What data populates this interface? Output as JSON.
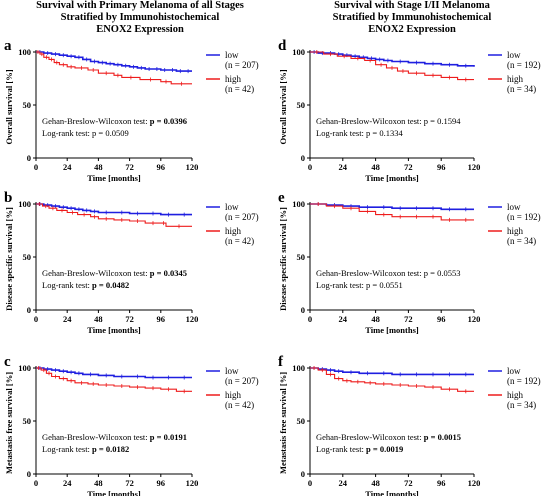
{
  "column_titles": [
    [
      "Survival with Primary Melanoma of all Stages",
      "Stratified by Immunohistochemical",
      "ENOX2 Expression"
    ],
    [
      "Survival with Stage I/II Melanoma",
      "Stratified by Immunohistochemical",
      "ENOX2 Expression"
    ]
  ],
  "colors": {
    "low": "#1f1fe0",
    "high": "#ee1c1c",
    "axis": "#000000"
  },
  "chart_data": [
    {
      "panel": "a",
      "type": "line",
      "ylabel": "Overall survival [%]",
      "xlabel": "Time [months]",
      "xlim": [
        0,
        120
      ],
      "ylim": [
        0,
        100
      ],
      "xticks": [
        0,
        24,
        48,
        72,
        96,
        120
      ],
      "yticks": [
        0,
        50,
        100
      ],
      "series": [
        {
          "name": "low",
          "n_label": "(n = 207)",
          "x": [
            0,
            6,
            12,
            18,
            24,
            30,
            36,
            42,
            48,
            54,
            60,
            66,
            72,
            78,
            84,
            90,
            96,
            102,
            108,
            114,
            120
          ],
          "y": [
            100,
            99,
            98,
            97,
            96,
            95,
            93,
            91,
            90,
            89,
            88,
            87,
            86,
            85,
            84,
            84,
            83,
            83,
            82,
            82,
            82
          ]
        },
        {
          "name": "high",
          "n_label": "(n = 42)",
          "x": [
            0,
            3,
            6,
            10,
            14,
            18,
            24,
            30,
            40,
            48,
            60,
            66,
            80,
            96,
            104,
            120
          ],
          "y": [
            100,
            98,
            95,
            93,
            90,
            88,
            86,
            85,
            83,
            80,
            78,
            76,
            74,
            72,
            70,
            70
          ]
        }
      ],
      "stats": [
        {
          "label": "Gehan-Breslow-Wilcoxon test: ",
          "value": "p = 0.0396",
          "bold": true
        },
        {
          "label": "Log-rank test: ",
          "value": "p = 0.0509",
          "bold": false
        }
      ]
    },
    {
      "panel": "b",
      "type": "line",
      "ylabel": "Disease specific survival [%]",
      "xlabel": "Time [months]",
      "xlim": [
        0,
        120
      ],
      "ylim": [
        0,
        100
      ],
      "xticks": [
        0,
        24,
        48,
        72,
        96,
        120
      ],
      "yticks": [
        0,
        50,
        100
      ],
      "series": [
        {
          "name": "low",
          "n_label": "(n = 207)",
          "x": [
            0,
            6,
            12,
            18,
            24,
            30,
            36,
            42,
            48,
            60,
            72,
            84,
            96,
            108,
            120
          ],
          "y": [
            100,
            99,
            98,
            97,
            96,
            95,
            94,
            93,
            92,
            92,
            91,
            91,
            90,
            90,
            90
          ]
        },
        {
          "name": "high",
          "n_label": "(n = 42)",
          "x": [
            0,
            5,
            10,
            16,
            24,
            32,
            42,
            48,
            60,
            72,
            84,
            96,
            100,
            120
          ],
          "y": [
            100,
            98,
            96,
            94,
            92,
            90,
            88,
            86,
            85,
            84,
            82,
            82,
            79,
            79
          ]
        }
      ],
      "stats": [
        {
          "label": "Gehan-Breslow-Wilcoxon test: ",
          "value": "p = 0.0345",
          "bold": true
        },
        {
          "label": "Log-rank test: ",
          "value": "p = 0.0482",
          "bold": true
        }
      ]
    },
    {
      "panel": "c",
      "type": "line",
      "ylabel": "Metastasis free survival [%]",
      "xlabel": "Time [months]",
      "xlim": [
        0,
        120
      ],
      "ylim": [
        0,
        100
      ],
      "xticks": [
        0,
        24,
        48,
        72,
        96,
        120
      ],
      "yticks": [
        0,
        50,
        100
      ],
      "series": [
        {
          "name": "low",
          "n_label": "(n = 207)",
          "x": [
            0,
            6,
            12,
            18,
            24,
            30,
            36,
            48,
            60,
            72,
            84,
            96,
            108,
            120
          ],
          "y": [
            100,
            99,
            98,
            97,
            96,
            95,
            94,
            93,
            92,
            92,
            91,
            91,
            91,
            91
          ]
        },
        {
          "name": "high",
          "n_label": "(n = 42)",
          "x": [
            0,
            4,
            8,
            12,
            18,
            24,
            30,
            40,
            48,
            60,
            72,
            84,
            96,
            108,
            120
          ],
          "y": [
            100,
            98,
            95,
            92,
            90,
            88,
            86,
            85,
            84,
            83,
            82,
            81,
            80,
            78,
            78
          ]
        }
      ],
      "stats": [
        {
          "label": "Gehan-Breslow-Wilcoxon test: ",
          "value": "p = 0.0191",
          "bold": true
        },
        {
          "label": "Log-rank test: ",
          "value": "p = 0.0182",
          "bold": true
        }
      ]
    },
    {
      "panel": "d",
      "type": "line",
      "ylabel": "Overall survival [%]",
      "xlabel": "Time [months]",
      "xlim": [
        0,
        120
      ],
      "ylim": [
        0,
        100
      ],
      "xticks": [
        0,
        24,
        48,
        72,
        96,
        120
      ],
      "yticks": [
        0,
        50,
        100
      ],
      "series": [
        {
          "name": "low",
          "n_label": "(n = 192)",
          "x": [
            0,
            6,
            12,
            18,
            24,
            30,
            36,
            42,
            48,
            54,
            60,
            72,
            84,
            96,
            108,
            120
          ],
          "y": [
            100,
            99,
            99,
            98,
            97,
            96,
            95,
            94,
            93,
            92,
            91,
            90,
            89,
            88,
            87,
            86
          ]
        },
        {
          "name": "high",
          "n_label": "(n = 34)",
          "x": [
            0,
            10,
            20,
            30,
            40,
            48,
            56,
            64,
            72,
            84,
            96,
            108,
            120
          ],
          "y": [
            100,
            98,
            96,
            94,
            92,
            88,
            85,
            82,
            80,
            78,
            76,
            74,
            74
          ]
        }
      ],
      "stats": [
        {
          "label": "Gehan-Breslow-Wilcoxon test: ",
          "value": "p = 0.1594",
          "bold": false
        },
        {
          "label": "Log-rank test: ",
          "value": "p = 0.1334",
          "bold": false
        }
      ]
    },
    {
      "panel": "e",
      "type": "line",
      "ylabel": "Disease specific survival [%]",
      "xlabel": "Time [months]",
      "xlim": [
        0,
        120
      ],
      "ylim": [
        0,
        100
      ],
      "xticks": [
        0,
        24,
        48,
        72,
        96,
        120
      ],
      "yticks": [
        0,
        50,
        100
      ],
      "series": [
        {
          "name": "low",
          "n_label": "(n = 192)",
          "x": [
            0,
            12,
            24,
            36,
            48,
            60,
            72,
            84,
            96,
            108,
            120
          ],
          "y": [
            100,
            99,
            98,
            97,
            97,
            96,
            96,
            96,
            95,
            95,
            95
          ]
        },
        {
          "name": "high",
          "n_label": "(n = 34)",
          "x": [
            0,
            12,
            24,
            36,
            48,
            60,
            72,
            84,
            96,
            108,
            120
          ],
          "y": [
            100,
            98,
            96,
            93,
            90,
            88,
            88,
            88,
            85,
            85,
            85
          ]
        }
      ],
      "stats": [
        {
          "label": "Gehan-Breslow-Wilcoxon test: ",
          "value": "p = 0.0553",
          "bold": false
        },
        {
          "label": "Log-rank test: ",
          "value": "p = 0.0551",
          "bold": false
        }
      ]
    },
    {
      "panel": "f",
      "type": "line",
      "ylabel": "Metastasis free survival [%]",
      "xlabel": "Time [months]",
      "xlim": [
        0,
        120
      ],
      "ylim": [
        0,
        100
      ],
      "xticks": [
        0,
        24,
        48,
        72,
        96,
        120
      ],
      "yticks": [
        0,
        50,
        100
      ],
      "series": [
        {
          "name": "low",
          "n_label": "(n = 192)",
          "x": [
            0,
            6,
            12,
            18,
            24,
            36,
            48,
            60,
            72,
            84,
            96,
            108,
            120
          ],
          "y": [
            100,
            99,
            98,
            97,
            96,
            95,
            95,
            94,
            94,
            94,
            94,
            94,
            94
          ]
        },
        {
          "name": "high",
          "n_label": "(n = 34)",
          "x": [
            0,
            6,
            12,
            18,
            24,
            30,
            40,
            48,
            60,
            72,
            84,
            96,
            108,
            120
          ],
          "y": [
            100,
            98,
            94,
            90,
            88,
            87,
            86,
            85,
            84,
            83,
            82,
            80,
            78,
            78
          ]
        }
      ],
      "stats": [
        {
          "label": "Gehan-Breslow-Wilcoxon test: ",
          "value": "p = 0.0015",
          "bold": true
        },
        {
          "label": "Log-rank test: ",
          "value": "p = 0.0019",
          "bold": true
        }
      ]
    }
  ]
}
